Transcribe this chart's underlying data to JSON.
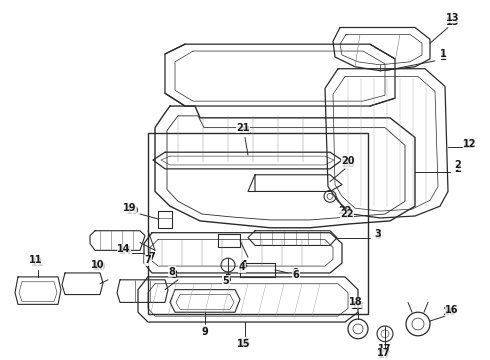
{
  "bg_color": "#ffffff",
  "line_color": "#2a2a2a",
  "text_color": "#1a1a1a",
  "figsize": [
    4.9,
    3.6
  ],
  "dpi": 100,
  "xlim": [
    0,
    490
  ],
  "ylim": [
    0,
    360
  ]
}
